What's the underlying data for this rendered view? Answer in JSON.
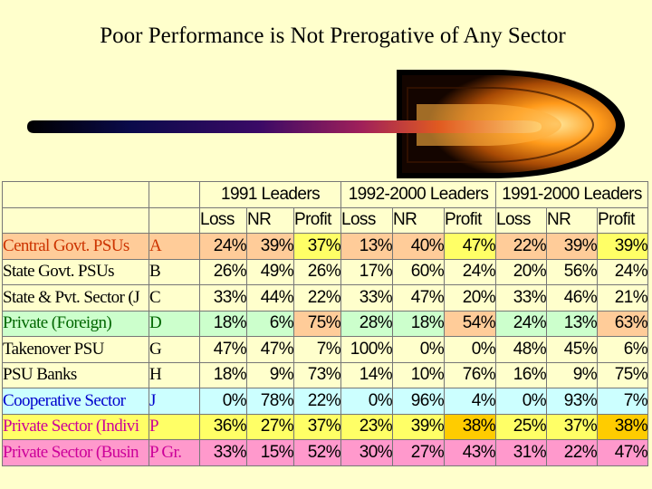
{
  "title": "Poor Performance is Not Prerogative of Any Sector",
  "colors": {
    "background": "#ffffcc",
    "orange": "#ffcc99",
    "green": "#ccffcc",
    "blue": "#ccffff",
    "yellow": "#ffff66",
    "pink": "#ff99cc",
    "gold": "#ffcc00"
  },
  "table": {
    "groups": [
      "1991 Leaders",
      "1992-2000 Leaders",
      "1991-2000 Leaders"
    ],
    "subheaders": [
      "Loss",
      "NR",
      "Profit",
      "Loss",
      "NR",
      "Profit",
      "Loss",
      "NR",
      "Profit"
    ],
    "rows": [
      {
        "name": "Central Govt. PSUs",
        "code": "A",
        "values": [
          "24%",
          "39%",
          "37%",
          "13%",
          "40%",
          "47%",
          "22%",
          "39%",
          "39%"
        ]
      },
      {
        "name": "State Govt. PSUs",
        "code": "B",
        "values": [
          "26%",
          "49%",
          "26%",
          "17%",
          "60%",
          "24%",
          "20%",
          "56%",
          "24%"
        ]
      },
      {
        "name": "State & Pvt. Sector (J",
        "code": "C",
        "values": [
          "33%",
          "44%",
          "22%",
          "33%",
          "47%",
          "20%",
          "33%",
          "46%",
          "21%"
        ]
      },
      {
        "name": "Private (Foreign)",
        "code": "D",
        "values": [
          "18%",
          "6%",
          "75%",
          "28%",
          "18%",
          "54%",
          "24%",
          "13%",
          "63%"
        ]
      },
      {
        "name": "Takenover PSU",
        "code": "G",
        "values": [
          "47%",
          "47%",
          "7%",
          "100%",
          "0%",
          "0%",
          "48%",
          "45%",
          "6%"
        ]
      },
      {
        "name": "PSU Banks",
        "code": "H",
        "values": [
          "18%",
          "9%",
          "73%",
          "14%",
          "10%",
          "76%",
          "16%",
          "9%",
          "75%"
        ]
      },
      {
        "name": "Cooperative Sector",
        "code": "J",
        "values": [
          "0%",
          "78%",
          "22%",
          "0%",
          "96%",
          "4%",
          "0%",
          "93%",
          "7%"
        ]
      },
      {
        "name": "Private Sector (Indivi",
        "code": "P",
        "values": [
          "36%",
          "27%",
          "37%",
          "23%",
          "39%",
          "38%",
          "25%",
          "37%",
          "38%"
        ]
      },
      {
        "name": "Private Sector (Busin",
        "code": "P Gr.",
        "values": [
          "33%",
          "15%",
          "52%",
          "30%",
          "27%",
          "43%",
          "31%",
          "22%",
          "47%"
        ]
      }
    ]
  }
}
